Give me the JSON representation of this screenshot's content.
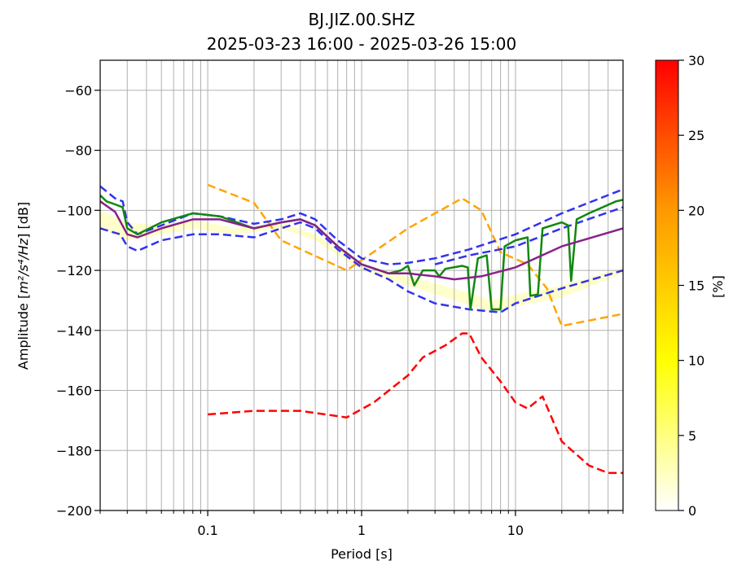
{
  "chart_data": {
    "type": "line",
    "title": "BJ.JIZ.00.SHZ",
    "subtitle": "2025-03-23 16:00 - 2025-03-26 15:00",
    "xlabel": "Period [s]",
    "ylabel_prefix": "Amplitude [",
    "ylabel_math": "m²/s⁴/Hz",
    "ylabel_suffix": "] [dB]",
    "xscale": "log",
    "xlim": [
      0.02,
      50
    ],
    "ylim": [
      -200,
      -50
    ],
    "xticks": [
      {
        "value": 0.1,
        "label": "0.1"
      },
      {
        "value": 1,
        "label": "1"
      },
      {
        "value": 10,
        "label": "10"
      }
    ],
    "yticks": [
      {
        "value": -60,
        "label": "−60"
      },
      {
        "value": -80,
        "label": "−80"
      },
      {
        "value": -100,
        "label": "−100"
      },
      {
        "value": -120,
        "label": "−120"
      },
      {
        "value": -140,
        "label": "−140"
      },
      {
        "value": -160,
        "label": "−160"
      },
      {
        "value": -180,
        "label": "−180"
      },
      {
        "value": -200,
        "label": "−200"
      }
    ],
    "grid": true,
    "colorbar": {
      "label": "[%]",
      "range": [
        0,
        30
      ],
      "colors": [
        "#ffffff",
        "#ffff00",
        "#ff9900",
        "#ff0000"
      ],
      "ticks": [
        {
          "value": 0,
          "label": "0"
        },
        {
          "value": 5,
          "label": "5"
        },
        {
          "value": 10,
          "label": "10"
        },
        {
          "value": 15,
          "label": "15"
        },
        {
          "value": 20,
          "label": "20"
        },
        {
          "value": 25,
          "label": "25"
        },
        {
          "value": 30,
          "label": "30"
        }
      ]
    },
    "density_band": {
      "color": "#ffffcc",
      "upper": [
        [
          0.02,
          -100
        ],
        [
          0.03,
          -104
        ],
        [
          0.05,
          -105
        ],
        [
          0.08,
          -103
        ],
        [
          0.15,
          -106
        ],
        [
          0.3,
          -104
        ],
        [
          0.5,
          -108
        ],
        [
          1,
          -118
        ],
        [
          2,
          -122
        ],
        [
          4,
          -126
        ],
        [
          7,
          -130
        ],
        [
          10,
          -128
        ],
        [
          20,
          -125
        ],
        [
          50,
          -119
        ]
      ],
      "lower": [
        [
          0.02,
          -106
        ],
        [
          0.03,
          -110
        ],
        [
          0.05,
          -108
        ],
        [
          0.08,
          -106
        ],
        [
          0.15,
          -108
        ],
        [
          0.3,
          -106
        ],
        [
          0.5,
          -110
        ],
        [
          1,
          -120
        ],
        [
          2,
          -125
        ],
        [
          4,
          -130
        ],
        [
          7,
          -134
        ],
        [
          10,
          -132
        ],
        [
          20,
          -129
        ],
        [
          50,
          -121
        ]
      ]
    },
    "series": [
      {
        "color": "#ffa500",
        "dash": "dashed",
        "width": 2.5,
        "points": [
          [
            0.1,
            -91.5
          ],
          [
            0.2,
            -97.5
          ],
          [
            0.3,
            -110
          ],
          [
            0.8,
            -120
          ],
          [
            2,
            -106
          ],
          [
            4.5,
            -96
          ],
          [
            6,
            -100
          ],
          [
            8,
            -114
          ],
          [
            12,
            -118
          ],
          [
            16,
            -126
          ],
          [
            20,
            -138.5
          ],
          [
            50,
            -134.5
          ]
        ]
      },
      {
        "color": "#ff0000",
        "dash": "dashed",
        "width": 2.5,
        "points": [
          [
            0.1,
            -168
          ],
          [
            0.2,
            -166.8
          ],
          [
            0.4,
            -166.8
          ],
          [
            0.8,
            -169
          ],
          [
            1.2,
            -164
          ],
          [
            2,
            -155
          ],
          [
            2.5,
            -149
          ],
          [
            3.5,
            -145
          ],
          [
            4.5,
            -141
          ],
          [
            5,
            -141
          ],
          [
            6,
            -149
          ],
          [
            8,
            -157
          ],
          [
            10,
            -164
          ],
          [
            12,
            -166
          ],
          [
            15,
            -162
          ],
          [
            20,
            -177
          ],
          [
            30,
            -185
          ],
          [
            40,
            -187.5
          ],
          [
            50,
            -187.5
          ]
        ]
      },
      {
        "color": "#3333ee",
        "dash": "dashed",
        "width": 2.5,
        "points": [
          [
            0.02,
            -92
          ],
          [
            0.025,
            -96
          ],
          [
            0.028,
            -97
          ],
          [
            0.03,
            -104
          ],
          [
            0.035,
            -108
          ],
          [
            0.05,
            -105
          ],
          [
            0.08,
            -101
          ],
          [
            0.12,
            -102
          ],
          [
            0.2,
            -104.5
          ],
          [
            0.3,
            -103
          ],
          [
            0.4,
            -101
          ],
          [
            0.5,
            -103
          ],
          [
            0.7,
            -110
          ],
          [
            1,
            -116
          ],
          [
            1.5,
            -118
          ],
          [
            2,
            -117.5
          ],
          [
            3,
            -116
          ],
          [
            5,
            -113
          ],
          [
            10,
            -108
          ],
          [
            20,
            -101
          ],
          [
            50,
            -93
          ]
        ]
      },
      {
        "color": "#3333ee",
        "dash": "dashed",
        "width": 2.5,
        "points": [
          [
            0.02,
            -106
          ],
          [
            0.027,
            -108
          ],
          [
            0.03,
            -112
          ],
          [
            0.035,
            -113.5
          ],
          [
            0.05,
            -110
          ],
          [
            0.08,
            -108
          ],
          [
            0.12,
            -108
          ],
          [
            0.2,
            -109
          ],
          [
            0.3,
            -106
          ],
          [
            0.4,
            -104
          ],
          [
            0.5,
            -106
          ],
          [
            0.7,
            -113
          ],
          [
            1,
            -119
          ],
          [
            1.5,
            -123
          ],
          [
            2,
            -127
          ],
          [
            3,
            -131
          ],
          [
            5,
            -133
          ],
          [
            8,
            -134
          ],
          [
            10,
            -131
          ],
          [
            20,
            -126
          ],
          [
            50,
            -120
          ]
        ]
      },
      {
        "color": "#3333ee",
        "dash": "dashed",
        "width": 2.5,
        "points": [
          [
            3,
            -118
          ],
          [
            5,
            -115
          ],
          [
            10,
            -112
          ],
          [
            20,
            -106
          ],
          [
            50,
            -99
          ]
        ]
      },
      {
        "color": "#118811",
        "dash": "solid",
        "width": 2.5,
        "points": [
          [
            0.02,
            -95
          ],
          [
            0.022,
            -97
          ],
          [
            0.025,
            -98
          ],
          [
            0.028,
            -99
          ],
          [
            0.03,
            -106
          ],
          [
            0.035,
            -108
          ],
          [
            0.05,
            -104
          ],
          [
            0.08,
            -101
          ],
          [
            0.12,
            -102
          ],
          [
            0.2,
            -106
          ],
          [
            0.3,
            -104
          ],
          [
            0.4,
            -103
          ],
          [
            0.5,
            -105
          ],
          [
            0.7,
            -112
          ],
          [
            1,
            -118
          ],
          [
            1.5,
            -121
          ],
          [
            1.8,
            -120
          ],
          [
            2,
            -118.5
          ],
          [
            2.2,
            -125
          ],
          [
            2.5,
            -120
          ],
          [
            3,
            -120
          ],
          [
            3.2,
            -122
          ],
          [
            3.5,
            -119.5
          ],
          [
            4.5,
            -118.5
          ],
          [
            4.9,
            -119
          ],
          [
            5.1,
            -133
          ],
          [
            5.7,
            -116
          ],
          [
            6.5,
            -115
          ],
          [
            7,
            -133
          ],
          [
            8,
            -133
          ],
          [
            8.5,
            -112
          ],
          [
            10,
            -110
          ],
          [
            12,
            -109
          ],
          [
            12.5,
            -128.5
          ],
          [
            14,
            -128
          ],
          [
            15,
            -106
          ],
          [
            20,
            -104
          ],
          [
            22,
            -105
          ],
          [
            23,
            -123.5
          ],
          [
            25,
            -103
          ],
          [
            30,
            -101
          ],
          [
            45,
            -97
          ],
          [
            50,
            -96.5
          ]
        ]
      },
      {
        "color": "#882288",
        "dash": "solid",
        "width": 2.5,
        "points": [
          [
            0.02,
            -97
          ],
          [
            0.025,
            -100.5
          ],
          [
            0.03,
            -108
          ],
          [
            0.035,
            -109
          ],
          [
            0.05,
            -106
          ],
          [
            0.08,
            -103
          ],
          [
            0.12,
            -103
          ],
          [
            0.2,
            -106
          ],
          [
            0.3,
            -104
          ],
          [
            0.4,
            -103
          ],
          [
            0.5,
            -105
          ],
          [
            0.7,
            -112
          ],
          [
            1,
            -118
          ],
          [
            1.5,
            -121
          ],
          [
            2,
            -121
          ],
          [
            3,
            -122
          ],
          [
            4,
            -123
          ],
          [
            6,
            -122
          ],
          [
            10,
            -119
          ],
          [
            20,
            -112
          ],
          [
            50,
            -106
          ]
        ]
      }
    ]
  }
}
